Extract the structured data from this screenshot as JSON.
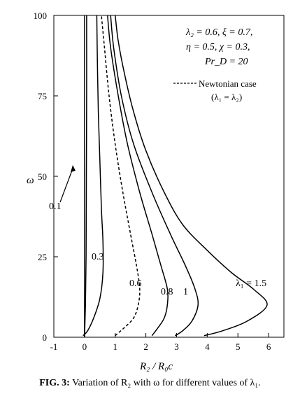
{
  "figure": {
    "caption_label": "FIG. 3:",
    "caption_text": "Variation of R₂ with ω for different values of λ₁."
  },
  "chart_data": {
    "type": "line",
    "xlabel": "R₂ / R₀c",
    "ylabel": "ω",
    "xlim": [
      -1,
      6.5
    ],
    "ylim": [
      0,
      100
    ],
    "xticks": [
      -1,
      0,
      1,
      2,
      3,
      4,
      5,
      6
    ],
    "yticks": [
      0,
      25,
      50,
      75,
      100
    ],
    "grid": false,
    "legend_position": "top-right",
    "parameters_text": [
      "λ₂ = 0.6, ξ = 0.7,",
      "η = 0.5, χ = 0.3,",
      "Pr_D = 20"
    ],
    "newtonian_legend": [
      "Newtonian case",
      "(λ₁ = λ₂)"
    ],
    "series": [
      {
        "name": "0.1",
        "style": "solid",
        "label": "0.1",
        "points": [
          [
            0.0,
            0.0
          ],
          [
            0.03,
            10
          ],
          [
            0.05,
            25
          ],
          [
            0.06,
            50
          ],
          [
            0.07,
            75
          ],
          [
            0.07,
            100
          ]
        ]
      },
      {
        "name": "0.3",
        "style": "solid",
        "label": "0.3",
        "points": [
          [
            -0.05,
            0.5
          ],
          [
            0.1,
            2.0
          ],
          [
            0.3,
            6.0
          ],
          [
            0.5,
            12.0
          ],
          [
            0.6,
            20.0
          ],
          [
            0.6,
            30.0
          ],
          [
            0.55,
            40.0
          ],
          [
            0.5,
            55.0
          ],
          [
            0.45,
            70.0
          ],
          [
            0.42,
            85.0
          ],
          [
            0.4,
            100.0
          ]
        ]
      },
      {
        "name": "0.6",
        "style": "dashed",
        "label": "0.6",
        "points": [
          [
            1.0,
            0.5
          ],
          [
            1.3,
            3.0
          ],
          [
            1.6,
            6.0
          ],
          [
            1.75,
            10.0
          ],
          [
            1.8,
            15.0
          ],
          [
            1.7,
            22.0
          ],
          [
            1.5,
            32.0
          ],
          [
            1.25,
            45.0
          ],
          [
            1.0,
            60.0
          ],
          [
            0.8,
            75.0
          ],
          [
            0.65,
            90.0
          ],
          [
            0.55,
            100.0
          ]
        ]
      },
      {
        "name": "0.8",
        "style": "solid",
        "label": "0.8",
        "points": [
          [
            2.2,
            0.5
          ],
          [
            2.4,
            3.0
          ],
          [
            2.6,
            6.0
          ],
          [
            2.7,
            10.0
          ],
          [
            2.7,
            15.0
          ],
          [
            2.5,
            22.0
          ],
          [
            2.2,
            32.0
          ],
          [
            1.8,
            45.0
          ],
          [
            1.4,
            60.0
          ],
          [
            1.1,
            75.0
          ],
          [
            0.85,
            90.0
          ],
          [
            0.75,
            100.0
          ]
        ]
      },
      {
        "name": "1",
        "style": "solid",
        "label": "1",
        "points": [
          [
            2.95,
            0.5
          ],
          [
            3.2,
            2.0
          ],
          [
            3.5,
            5.0
          ],
          [
            3.7,
            10.0
          ],
          [
            3.6,
            15.0
          ],
          [
            3.3,
            22.0
          ],
          [
            2.8,
            32.0
          ],
          [
            2.2,
            45.0
          ],
          [
            1.6,
            60.0
          ],
          [
            1.2,
            75.0
          ],
          [
            0.95,
            90.0
          ],
          [
            0.85,
            100.0
          ]
        ]
      },
      {
        "name": "λ₁ = 1.5",
        "style": "solid",
        "label": "λ₁ = 1.5",
        "points": [
          [
            3.9,
            0.5
          ],
          [
            4.5,
            2.0
          ],
          [
            5.3,
            5.0
          ],
          [
            5.95,
            10.0
          ],
          [
            5.5,
            15.0
          ],
          [
            4.8,
            20.0
          ],
          [
            4.0,
            27.0
          ],
          [
            3.2,
            35.0
          ],
          [
            2.6,
            45.0
          ],
          [
            2.0,
            58.0
          ],
          [
            1.6,
            70.0
          ],
          [
            1.3,
            82.0
          ],
          [
            1.1,
            92.0
          ],
          [
            1.0,
            100.0
          ]
        ]
      }
    ]
  }
}
